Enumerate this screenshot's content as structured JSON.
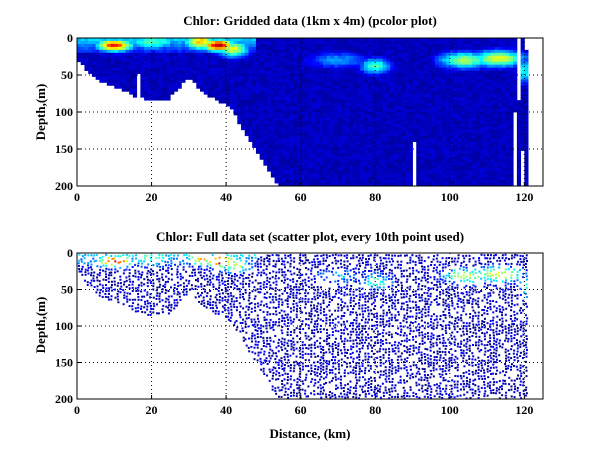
{
  "chart_data": [
    {
      "type": "heatmap",
      "title": "Chlor: Gridded data (1km x 4m) (pcolor plot)",
      "xlabel": "",
      "ylabel": "Depth,(m)",
      "xlim": [
        0,
        125
      ],
      "ylim": [
        0,
        200
      ],
      "y_reversed": true,
      "grid": true,
      "cell_km": 1,
      "cell_m": 4,
      "xticks": [
        "0",
        "20",
        "40",
        "60",
        "80",
        "100",
        "120"
      ],
      "yticks": [
        "0",
        "50",
        "100",
        "150",
        "200"
      ],
      "colormap": "jet"
    },
    {
      "type": "scatter",
      "title": "Chlor: Full data set (scatter plot, every 10th point used)",
      "xlabel": "Distance, (km)",
      "ylabel": "Depth,(m)",
      "xlim": [
        0,
        125
      ],
      "ylim": [
        0,
        200
      ],
      "y_reversed": true,
      "grid": true,
      "xticks": [
        "0",
        "20",
        "40",
        "60",
        "80",
        "100",
        "120"
      ],
      "yticks": [
        "0",
        "50",
        "100",
        "150",
        "200"
      ],
      "colormap": "jet"
    }
  ],
  "section": {
    "bottom_profile_km": [
      0,
      2,
      4,
      6,
      10,
      14,
      16,
      20,
      24,
      26,
      30,
      32,
      36,
      40,
      42,
      44,
      48,
      52,
      54,
      121
    ],
    "bottom_profile_m": [
      30,
      40,
      50,
      60,
      65,
      75,
      80,
      85,
      85,
      75,
      52,
      65,
      80,
      90,
      100,
      120,
      150,
      185,
      198,
      198
    ],
    "data_end_km": 121,
    "gaps": [
      {
        "km": 16,
        "from_m": 45,
        "to_m": 80
      },
      {
        "km": 90,
        "from_m": 138,
        "to_m": 200
      },
      {
        "km": 117,
        "from_m": 100,
        "to_m": 200
      },
      {
        "km": 118,
        "from_m": 0,
        "to_m": 80
      },
      {
        "km": 119,
        "from_m": 150,
        "to_m": 200
      },
      {
        "km": 120,
        "from_m": 0,
        "to_m": 15
      }
    ],
    "base_value": 0.06,
    "surface_layer": {
      "km_max": 48,
      "depth_m": 20,
      "value": 0.35
    },
    "hotspots": [
      {
        "km": 10,
        "depth_m": 10,
        "value": 0.85,
        "sx": 3.5,
        "sy": 6
      },
      {
        "km": 33,
        "depth_m": 5,
        "value": 0.7,
        "sx": 3,
        "sy": 8
      },
      {
        "km": 38,
        "depth_m": 10,
        "value": 0.95,
        "sx": 3,
        "sy": 6
      },
      {
        "km": 42,
        "depth_m": 15,
        "value": 0.6,
        "sx": 3,
        "sy": 8
      },
      {
        "km": 20,
        "depth_m": 5,
        "value": 0.45,
        "sx": 6,
        "sy": 8
      },
      {
        "km": 80,
        "depth_m": 38,
        "value": 0.45,
        "sx": 3,
        "sy": 8
      },
      {
        "km": 70,
        "depth_m": 30,
        "value": 0.28,
        "sx": 6,
        "sy": 8
      },
      {
        "km": 104,
        "depth_m": 30,
        "value": 0.55,
        "sx": 5,
        "sy": 8
      },
      {
        "km": 113,
        "depth_m": 28,
        "value": 0.62,
        "sx": 5,
        "sy": 8
      },
      {
        "km": 120,
        "depth_m": 45,
        "value": 0.4,
        "sx": 1.5,
        "sy": 12
      }
    ]
  }
}
